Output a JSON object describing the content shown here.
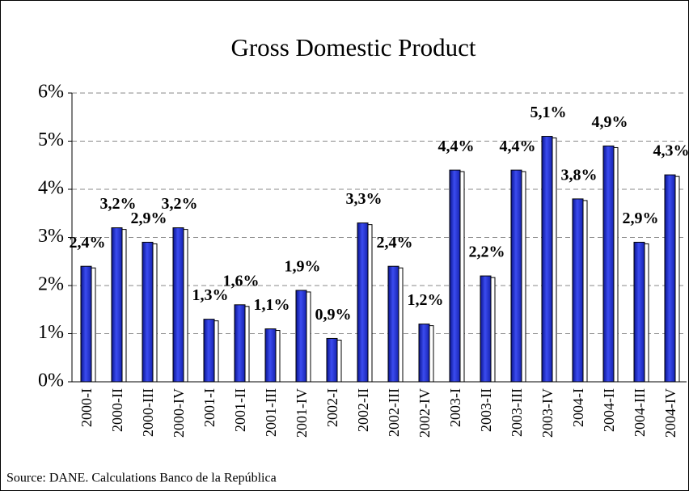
{
  "chart_data": {
    "type": "bar",
    "title": "Gross Domestic Product",
    "source": "Source: DANE. Calculations Banco de la República",
    "categories": [
      "2000-I",
      "2000-II",
      "2000-III",
      "2000-IV",
      "2001-I",
      "2001-II",
      "2001-III",
      "2001-IV",
      "2002-I",
      "2002-II",
      "2002-III",
      "2002-IV",
      "2003-I",
      "2003-II",
      "2003-III",
      "2003-IV",
      "2004-I",
      "2004-II",
      "2004-III",
      "2004-IV"
    ],
    "values": [
      2.4,
      3.2,
      2.9,
      3.2,
      1.3,
      1.6,
      1.1,
      1.9,
      0.9,
      3.3,
      2.4,
      1.2,
      4.4,
      2.2,
      4.4,
      5.1,
      3.8,
      4.9,
      2.9,
      4.3
    ],
    "value_labels": [
      "2,4%",
      "3,2%",
      "2,9%",
      "3,2%",
      "1,3%",
      "1,6%",
      "1,1%",
      "1,9%",
      "0,9%",
      "3,3%",
      "2,4%",
      "1,2%",
      "4,4%",
      "2,2%",
      "4,4%",
      "5,1%",
      "3,8%",
      "4,9%",
      "2,9%",
      "4,3%"
    ],
    "color": "#2a35d6",
    "ylim": [
      0,
      6
    ],
    "yticks": [
      {
        "value": 0,
        "label": "0%"
      },
      {
        "value": 1,
        "label": "1%"
      },
      {
        "value": 2,
        "label": "2%"
      },
      {
        "value": 3,
        "label": "3%"
      },
      {
        "value": 4,
        "label": "4%"
      },
      {
        "value": 5,
        "label": "5%"
      },
      {
        "value": 6,
        "label": "6%"
      }
    ],
    "grid": true
  }
}
